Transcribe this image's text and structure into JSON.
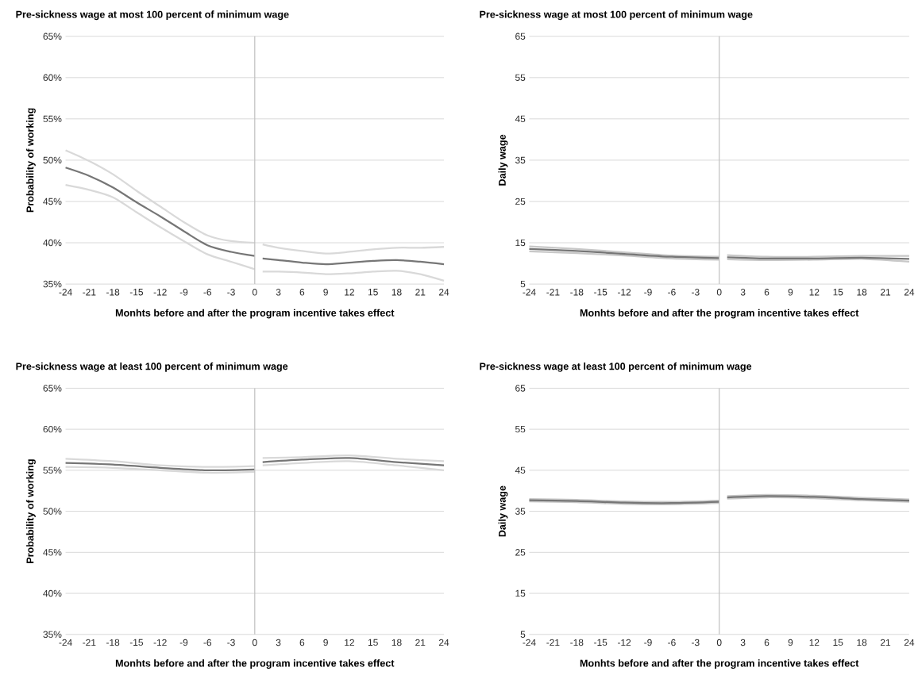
{
  "chart_data": [
    {
      "type": "line",
      "title": "Pre-sickness wage at most 100 percent of minimum wage",
      "xlabel": "Monhts before and after the program incentive takes effect",
      "ylabel": "Probability of working",
      "xlim": [
        -24,
        24
      ],
      "xticks": [
        -24,
        -21,
        -18,
        -15,
        -12,
        -9,
        -6,
        -3,
        0,
        3,
        6,
        9,
        12,
        15,
        18,
        21,
        24
      ],
      "ylim": [
        35,
        65
      ],
      "yticks": [
        {
          "value": 35,
          "label": "35%"
        },
        {
          "value": 40,
          "label": "40%"
        },
        {
          "value": 45,
          "label": "45%"
        },
        {
          "value": 50,
          "label": "50%"
        },
        {
          "value": 55,
          "label": "55%"
        },
        {
          "value": 60,
          "label": "60%"
        },
        {
          "value": 65,
          "label": "65%"
        }
      ],
      "grid": "y",
      "ref_lines": [
        {
          "axis": "x",
          "value": 0,
          "color": "#bfbfbf"
        }
      ],
      "series": [
        {
          "color": "#d9d9d9",
          "x": [
            -24,
            -21,
            -18,
            -15,
            -12,
            -9,
            -6,
            -3,
            0
          ],
          "values": [
            51.2,
            49.9,
            48.3,
            46.3,
            44.4,
            42.5,
            40.9,
            40.2,
            40.0
          ]
        },
        {
          "color": "#d9d9d9",
          "x": [
            -24,
            -21,
            -18,
            -15,
            -12,
            -9,
            -6,
            -3,
            0
          ],
          "values": [
            47.0,
            46.4,
            45.5,
            43.7,
            41.9,
            40.2,
            38.6,
            37.7,
            36.8
          ]
        },
        {
          "color": "#767676",
          "x": [
            -24,
            -21,
            -18,
            -15,
            -12,
            -9,
            -6,
            -3,
            0
          ],
          "values": [
            49.1,
            48.1,
            46.7,
            44.9,
            43.2,
            41.4,
            39.7,
            38.9,
            38.4
          ]
        },
        {
          "color": "#d9d9d9",
          "x": [
            1,
            3,
            6,
            9,
            12,
            15,
            18,
            21,
            24
          ],
          "values": [
            39.8,
            39.4,
            39.0,
            38.7,
            38.9,
            39.2,
            39.4,
            39.4,
            39.5
          ]
        },
        {
          "color": "#d9d9d9",
          "x": [
            1,
            3,
            6,
            9,
            12,
            15,
            18,
            21,
            24
          ],
          "values": [
            36.5,
            36.5,
            36.4,
            36.2,
            36.3,
            36.5,
            36.6,
            36.2,
            35.4
          ]
        },
        {
          "color": "#767676",
          "x": [
            1,
            3,
            6,
            9,
            12,
            15,
            18,
            21,
            24
          ],
          "values": [
            38.1,
            37.9,
            37.6,
            37.4,
            37.6,
            37.8,
            37.9,
            37.7,
            37.4
          ]
        }
      ]
    },
    {
      "type": "line",
      "title": "Pre-sickness wage at most 100 percent of minimum wage",
      "xlabel": "Monhts before and after the program incentive takes effect",
      "ylabel": "Daily wage",
      "xlim": [
        -24,
        24
      ],
      "xticks": [
        -24,
        -21,
        -18,
        -15,
        -12,
        -9,
        -6,
        -3,
        0,
        3,
        6,
        9,
        12,
        15,
        18,
        21,
        24
      ],
      "ylim": [
        5,
        65
      ],
      "yticks": [
        5,
        15,
        25,
        35,
        45,
        55,
        65
      ],
      "grid": "y",
      "ref_lines": [
        {
          "axis": "x",
          "value": 0,
          "color": "#bfbfbf"
        }
      ],
      "series": [
        {
          "color": "#c8c8c8",
          "x": [
            -24,
            -18,
            -12,
            -6,
            0
          ],
          "values": [
            14.1,
            13.5,
            12.7,
            11.9,
            11.6
          ]
        },
        {
          "color": "#c8c8c8",
          "x": [
            -24,
            -18,
            -12,
            -6,
            0
          ],
          "values": [
            12.9,
            12.5,
            11.9,
            11.2,
            10.9
          ]
        },
        {
          "color": "#767676",
          "x": [
            -24,
            -18,
            -12,
            -6,
            0
          ],
          "values": [
            13.5,
            13.0,
            12.3,
            11.6,
            11.3
          ]
        },
        {
          "color": "#c8c8c8",
          "x": [
            1,
            6,
            12,
            18,
            24
          ],
          "values": [
            12.0,
            11.6,
            11.6,
            11.8,
            11.8
          ]
        },
        {
          "color": "#c8c8c8",
          "x": [
            1,
            6,
            12,
            18,
            24
          ],
          "values": [
            11.0,
            10.8,
            10.9,
            11.1,
            10.4
          ]
        },
        {
          "color": "#767676",
          "x": [
            1,
            6,
            12,
            18,
            24
          ],
          "values": [
            11.5,
            11.2,
            11.2,
            11.4,
            11.1
          ]
        }
      ]
    },
    {
      "type": "line",
      "title": "Pre-sickness wage at least 100 percent of minimum wage",
      "xlabel": "Monhts before and after the program incentive takes effect",
      "ylabel": "Probability of working",
      "xlim": [
        -24,
        24
      ],
      "xticks": [
        -24,
        -21,
        -18,
        -15,
        -12,
        -9,
        -6,
        -3,
        0,
        3,
        6,
        9,
        12,
        15,
        18,
        21,
        24
      ],
      "ylim": [
        35,
        65
      ],
      "yticks": [
        {
          "value": 35,
          "label": "35%"
        },
        {
          "value": 40,
          "label": "40%"
        },
        {
          "value": 45,
          "label": "45%"
        },
        {
          "value": 50,
          "label": "50%"
        },
        {
          "value": 55,
          "label": "55%"
        },
        {
          "value": 60,
          "label": "60%"
        },
        {
          "value": 65,
          "label": "65%"
        }
      ],
      "grid": "y",
      "ref_lines": [
        {
          "axis": "x",
          "value": 0,
          "color": "#bfbfbf"
        }
      ],
      "series": [
        {
          "color": "#d9d9d9",
          "x": [
            -24,
            -18,
            -12,
            -6,
            0
          ],
          "values": [
            56.4,
            56.1,
            55.6,
            55.4,
            55.5
          ]
        },
        {
          "color": "#d9d9d9",
          "x": [
            -24,
            -18,
            -12,
            -6,
            0
          ],
          "values": [
            55.4,
            55.3,
            55.0,
            54.7,
            54.8
          ]
        },
        {
          "color": "#767676",
          "x": [
            -24,
            -18,
            -12,
            -6,
            0
          ],
          "values": [
            55.9,
            55.7,
            55.3,
            55.0,
            55.1
          ]
        },
        {
          "color": "#d9d9d9",
          "x": [
            1,
            6,
            12,
            18,
            24
          ],
          "values": [
            56.5,
            56.6,
            56.8,
            56.4,
            56.1
          ]
        },
        {
          "color": "#d9d9d9",
          "x": [
            1,
            6,
            12,
            18,
            24
          ],
          "values": [
            55.6,
            55.9,
            56.1,
            55.6,
            55.0
          ]
        },
        {
          "color": "#767676",
          "x": [
            1,
            6,
            12,
            18,
            24
          ],
          "values": [
            56.0,
            56.3,
            56.5,
            56.0,
            55.6
          ]
        }
      ]
    },
    {
      "type": "line",
      "title": "Pre-sickness wage at least 100 percent of minimum wage",
      "xlabel": "Monhts before and after the program incentive takes effect",
      "ylabel": "Daily wage",
      "xlim": [
        -24,
        24
      ],
      "xticks": [
        -24,
        -21,
        -18,
        -15,
        -12,
        -9,
        -6,
        -3,
        0,
        3,
        6,
        9,
        12,
        15,
        18,
        21,
        24
      ],
      "ylim": [
        5,
        65
      ],
      "yticks": [
        5,
        15,
        25,
        35,
        45,
        55,
        65
      ],
      "grid": "y",
      "ref_lines": [
        {
          "axis": "x",
          "value": 0,
          "color": "#bfbfbf"
        }
      ],
      "series": [
        {
          "color": "#c8c8c8",
          "x": [
            -24,
            -18,
            -12,
            -6,
            0
          ],
          "values": [
            38.0,
            37.8,
            37.4,
            37.3,
            37.6
          ]
        },
        {
          "color": "#c8c8c8",
          "x": [
            -24,
            -18,
            -12,
            -6,
            0
          ],
          "values": [
            37.4,
            37.2,
            36.8,
            36.7,
            37.0
          ]
        },
        {
          "color": "#767676",
          "x": [
            -24,
            -18,
            -12,
            -6,
            0
          ],
          "values": [
            37.7,
            37.5,
            37.1,
            37.0,
            37.3
          ]
        },
        {
          "color": "#c8c8c8",
          "x": [
            1,
            6,
            12,
            18,
            24
          ],
          "values": [
            38.7,
            39.0,
            38.8,
            38.3,
            37.9
          ]
        },
        {
          "color": "#c8c8c8",
          "x": [
            1,
            6,
            12,
            18,
            24
          ],
          "values": [
            38.1,
            38.4,
            38.2,
            37.7,
            37.3
          ]
        },
        {
          "color": "#767676",
          "x": [
            1,
            6,
            12,
            18,
            24
          ],
          "values": [
            38.4,
            38.7,
            38.5,
            38.0,
            37.6
          ]
        }
      ]
    }
  ]
}
